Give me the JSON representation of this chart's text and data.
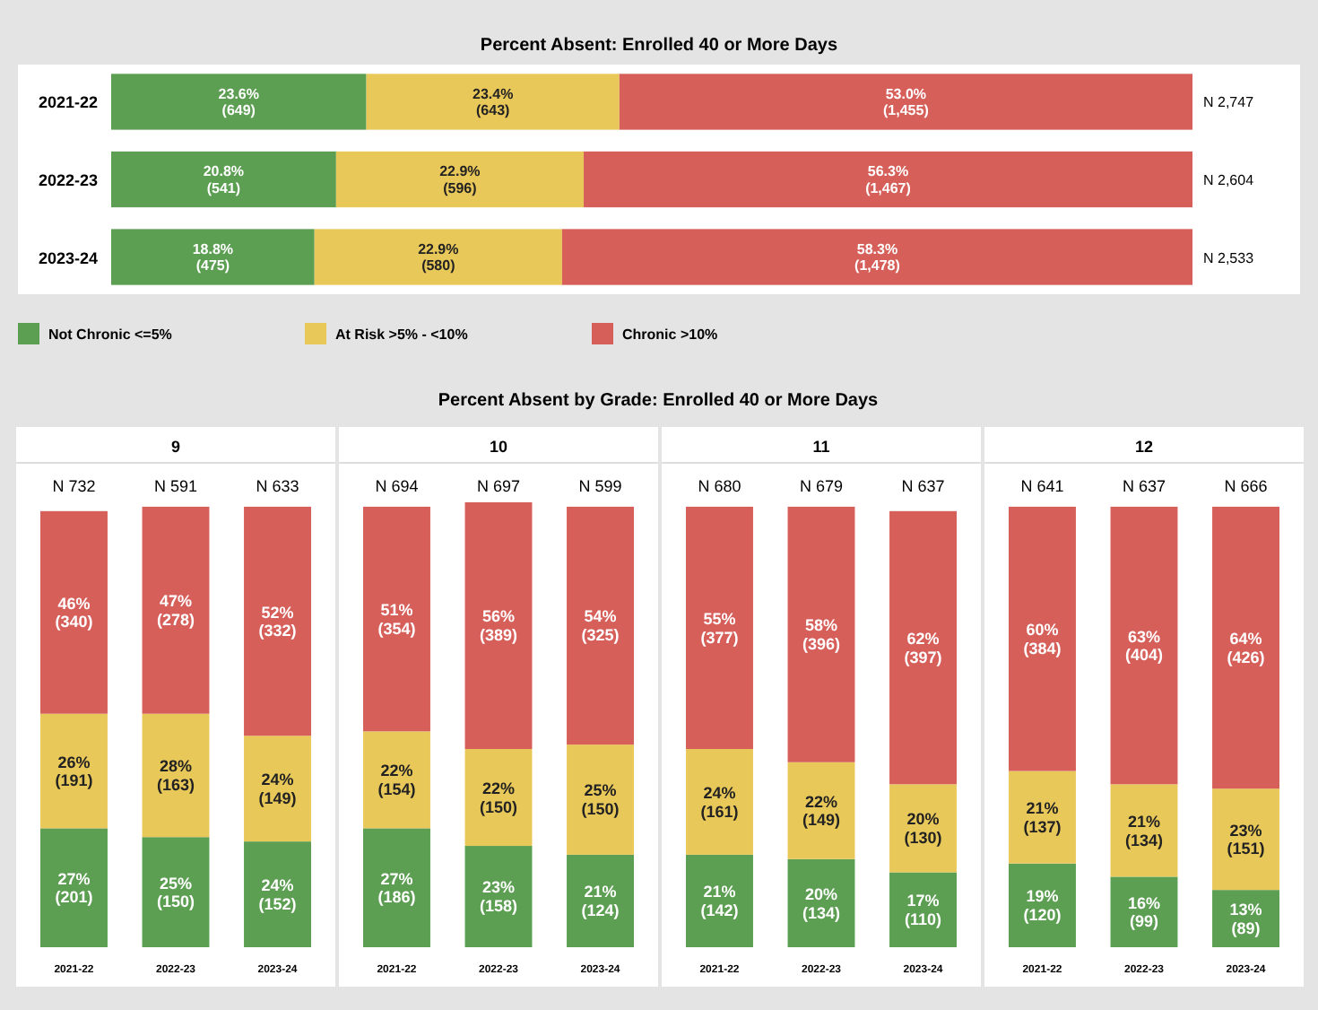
{
  "chart_data": [
    {
      "type": "bar",
      "orientation": "horizontal",
      "stacked": true,
      "title": "Percent Absent: Enrolled 40 or More Days",
      "categories": [
        "2021-22",
        "2022-23",
        "2023-24"
      ],
      "xlim": [
        0,
        100
      ],
      "tick_labels": "y",
      "legend": "bottom left",
      "series": [
        {
          "name": "Not Chronic <=5%",
          "color": "#5c9e52",
          "values": [
            23.6,
            20.8,
            18.8
          ],
          "value_labels": [
            "23.6%\n(649)",
            "20.8%\n(541)",
            "18.8%\n(475)"
          ]
        },
        {
          "name": "At Risk >5% - <10%",
          "color": "#e9c85a",
          "values": [
            23.4,
            22.9,
            22.9
          ],
          "value_labels": [
            "23.4%\n(643)",
            "22.9%\n(596)",
            "22.9%\n(580)"
          ]
        },
        {
          "name": "Chronic >10%",
          "color": "#d65f5a",
          "values": [
            53.0,
            56.3,
            58.3
          ],
          "value_labels": [
            "53.0%\n(1,455)",
            "56.3%\n(1,467)",
            "58.3%\n(1,478)"
          ]
        }
      ],
      "totals": [
        "N 2,747",
        "N 2,604",
        "N 2,533"
      ]
    },
    {
      "type": "bar",
      "stacked": true,
      "title": "9",
      "annotations": [
        "Percent Absent by Grade: Enrolled 40 or More Days"
      ],
      "categories": [
        "2021-22",
        "2022-23",
        "2023-24"
      ],
      "ylim": [
        0,
        101
      ],
      "tick_labels": "x",
      "series": [
        {
          "color": "#5c9e52",
          "values": [
            27,
            25,
            24
          ],
          "value_labels": [
            "27%\n(201)",
            "25%\n(150)",
            "24%\n(152)"
          ]
        },
        {
          "color": "#e9c85a",
          "values": [
            26,
            28,
            24
          ],
          "value_labels": [
            "26%\n(191)",
            "28%\n(163)",
            "24%\n(149)"
          ]
        },
        {
          "color": "#d65f5a",
          "values": [
            46,
            47,
            52
          ],
          "value_labels": [
            "46%\n(340)",
            "47%\n(278)",
            "52%\n(332)"
          ]
        }
      ],
      "totals": [
        "N 732",
        "N 591",
        "N 633"
      ]
    },
    {
      "type": "bar",
      "stacked": true,
      "title": "10",
      "categories": [
        "2021-22",
        "2022-23",
        "2023-24"
      ],
      "ylim": [
        0,
        101
      ],
      "tick_labels": "x",
      "series": [
        {
          "color": "#5c9e52",
          "values": [
            27,
            23,
            21
          ],
          "value_labels": [
            "27%\n(186)",
            "23%\n(158)",
            "21%\n(124)"
          ]
        },
        {
          "color": "#e9c85a",
          "values": [
            22,
            22,
            25
          ],
          "value_labels": [
            "22%\n(154)",
            "22%\n(150)",
            "25%\n(150)"
          ]
        },
        {
          "color": "#d65f5a",
          "values": [
            51,
            56,
            54
          ],
          "value_labels": [
            "51%\n(354)",
            "56%\n(389)",
            "54%\n(325)"
          ]
        }
      ],
      "totals": [
        "N 694",
        "N 697",
        "N 599"
      ]
    },
    {
      "type": "bar",
      "stacked": true,
      "title": "11",
      "categories": [
        "2021-22",
        "2022-23",
        "2023-24"
      ],
      "ylim": [
        0,
        101
      ],
      "tick_labels": "x",
      "series": [
        {
          "color": "#5c9e52",
          "values": [
            21,
            20,
            17
          ],
          "value_labels": [
            "21%\n(142)",
            "20%\n(134)",
            "17%\n(110)"
          ]
        },
        {
          "color": "#e9c85a",
          "values": [
            24,
            22,
            20
          ],
          "value_labels": [
            "24%\n(161)",
            "22%\n(149)",
            "20%\n(130)"
          ]
        },
        {
          "color": "#d65f5a",
          "values": [
            55,
            58,
            62
          ],
          "value_labels": [
            "55%\n(377)",
            "58%\n(396)",
            "62%\n(397)"
          ]
        }
      ],
      "totals": [
        "N 680",
        "N 679",
        "N 637"
      ]
    },
    {
      "type": "bar",
      "stacked": true,
      "title": "12",
      "categories": [
        "2021-22",
        "2022-23",
        "2023-24"
      ],
      "ylim": [
        0,
        101
      ],
      "tick_labels": "x",
      "series": [
        {
          "color": "#5c9e52",
          "values": [
            19,
            16,
            13
          ],
          "value_labels": [
            "19%\n(120)",
            "16%\n(99)",
            "13%\n(89)"
          ]
        },
        {
          "color": "#e9c85a",
          "values": [
            21,
            21,
            23
          ],
          "value_labels": [
            "21%\n(137)",
            "21%\n(134)",
            "23%\n(151)"
          ]
        },
        {
          "color": "#d65f5a",
          "values": [
            60,
            63,
            64
          ],
          "value_labels": [
            "60%\n(384)",
            "63%\n(404)",
            "64%\n(426)"
          ]
        }
      ],
      "totals": [
        "N 641",
        "N 637",
        "N 666"
      ]
    }
  ]
}
